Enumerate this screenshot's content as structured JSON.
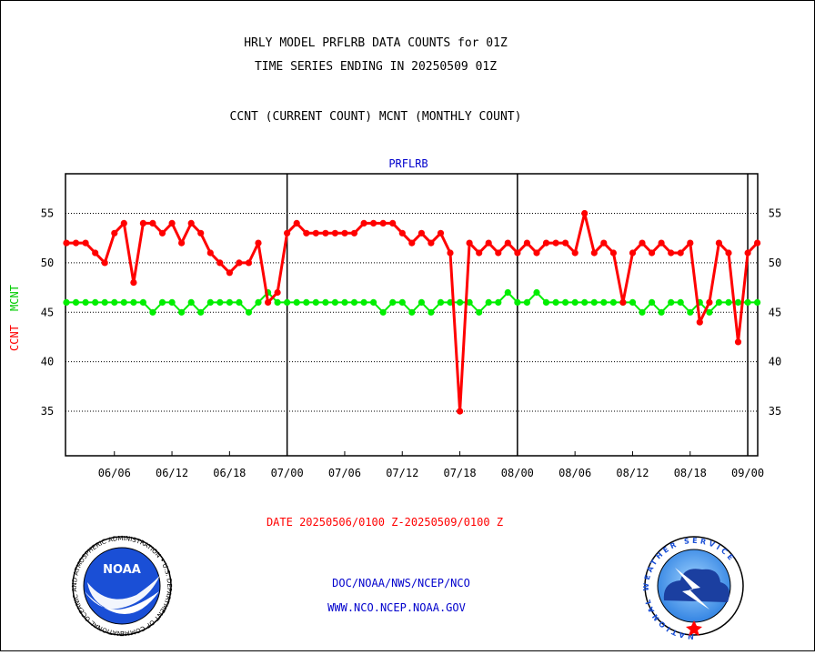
{
  "header": {
    "title_line1": "HRLY MODEL PRFLRB DATA COUNTS for 01Z",
    "title_line2": "TIME SERIES ENDING IN 20250509 01Z",
    "subtitle": "CCNT (CURRENT COUNT) MCNT (MONTHLY COUNT)"
  },
  "footer": {
    "date_range": "DATE 20250506/0100 Z-20250509/0100 Z",
    "org_line": "DOC/NOAA/NWS/NCEP/NCO",
    "url_line": "WWW.NCO.NCEP.NOAA.GOV",
    "noaa_logo_text": "NOAA",
    "noaa_ring_text": "NATIONAL OCEANIC AND ATMOSPHERIC ADMINISTRATION • U.S. DEPARTMENT OF COMMERCE •",
    "nws_ring_text": "NATIONAL WEATHER SERVICE"
  },
  "colors": {
    "ccnt": "#ff0000",
    "mcnt": "#00ee00",
    "label_blue": "#0000cc"
  },
  "chart_data": {
    "type": "line",
    "title": "PRFLRB",
    "ylabel_ccnt": "CCNT",
    "ylabel_mcnt": "MCNT",
    "ylim": [
      30.5,
      59
    ],
    "xlim": [
      0,
      72
    ],
    "yticks": [
      35,
      40,
      45,
      50,
      55
    ],
    "grid": true,
    "x_ticks": [
      {
        "x": 5,
        "label": "06/06"
      },
      {
        "x": 11,
        "label": "06/12"
      },
      {
        "x": 17,
        "label": "06/18"
      },
      {
        "x": 23,
        "label": "07/00"
      },
      {
        "x": 29,
        "label": "07/06"
      },
      {
        "x": 35,
        "label": "07/12"
      },
      {
        "x": 41,
        "label": "07/18"
      },
      {
        "x": 47,
        "label": "08/00"
      },
      {
        "x": 53,
        "label": "08/06"
      },
      {
        "x": 59,
        "label": "08/12"
      },
      {
        "x": 65,
        "label": "08/18"
      },
      {
        "x": 71,
        "label": "09/00"
      }
    ],
    "day_boundaries": [
      23,
      47,
      71
    ],
    "series": [
      {
        "name": "CCNT",
        "values": [
          52,
          52,
          52,
          51,
          50,
          53,
          54,
          48,
          54,
          54,
          53,
          54,
          52,
          54,
          53,
          51,
          50,
          49,
          50,
          50,
          52,
          46,
          47,
          53,
          54,
          53,
          53,
          53,
          53,
          53,
          53,
          54,
          54,
          54,
          54,
          53,
          52,
          53,
          52,
          53,
          51,
          35,
          52,
          51,
          52,
          51,
          52,
          51,
          52,
          51,
          52,
          52,
          52,
          51,
          55,
          51,
          52,
          51,
          46,
          51,
          52,
          51,
          52,
          51,
          51,
          52,
          44,
          46,
          52,
          51,
          42,
          51,
          52
        ]
      },
      {
        "name": "MCNT",
        "values": [
          46,
          46,
          46,
          46,
          46,
          46,
          46,
          46,
          46,
          45,
          46,
          46,
          45,
          46,
          45,
          46,
          46,
          46,
          46,
          45,
          46,
          47,
          46,
          46,
          46,
          46,
          46,
          46,
          46,
          46,
          46,
          46,
          46,
          45,
          46,
          46,
          45,
          46,
          45,
          46,
          46,
          46,
          46,
          45,
          46,
          46,
          47,
          46,
          46,
          47,
          46,
          46,
          46,
          46,
          46,
          46,
          46,
          46,
          46,
          46,
          45,
          46,
          45,
          46,
          46,
          45,
          46,
          45,
          46,
          46,
          46,
          46,
          46
        ]
      }
    ]
  }
}
